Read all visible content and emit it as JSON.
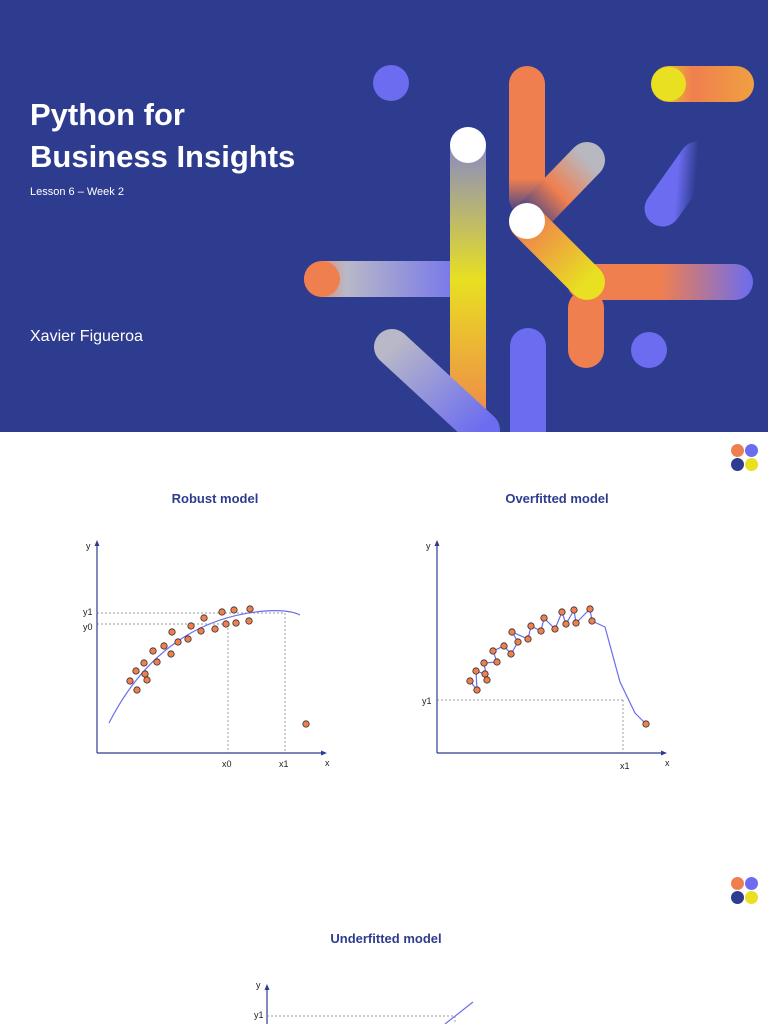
{
  "title_slide": {
    "title": "Python for\nBusiness Insights",
    "subtitle": "Lesson 6 – Week 2",
    "author": "Xavier Figueroa"
  },
  "colors": {
    "navy": "#2e3c8f",
    "orange": "#f07f4f",
    "periwinkle": "#6b6cf0",
    "yellow": "#e8e021",
    "grey": "#b8b8c0",
    "curve": "#6b6cf0"
  },
  "logo_icon": "four-dots-logo-icon",
  "robust_chart": {
    "title": "Robust model",
    "y_axis": "y",
    "x_axis": "x",
    "y1": "y1",
    "y0": "y0",
    "x0": "x0",
    "x1": "x1"
  },
  "overfitted_chart": {
    "title": "Overfitted model",
    "y_axis": "y",
    "x_axis": "x",
    "y1": "y1",
    "x1": "x1"
  },
  "underfitted_chart": {
    "title": "Underfitted model",
    "y_axis": "y",
    "y1": "y1"
  }
}
